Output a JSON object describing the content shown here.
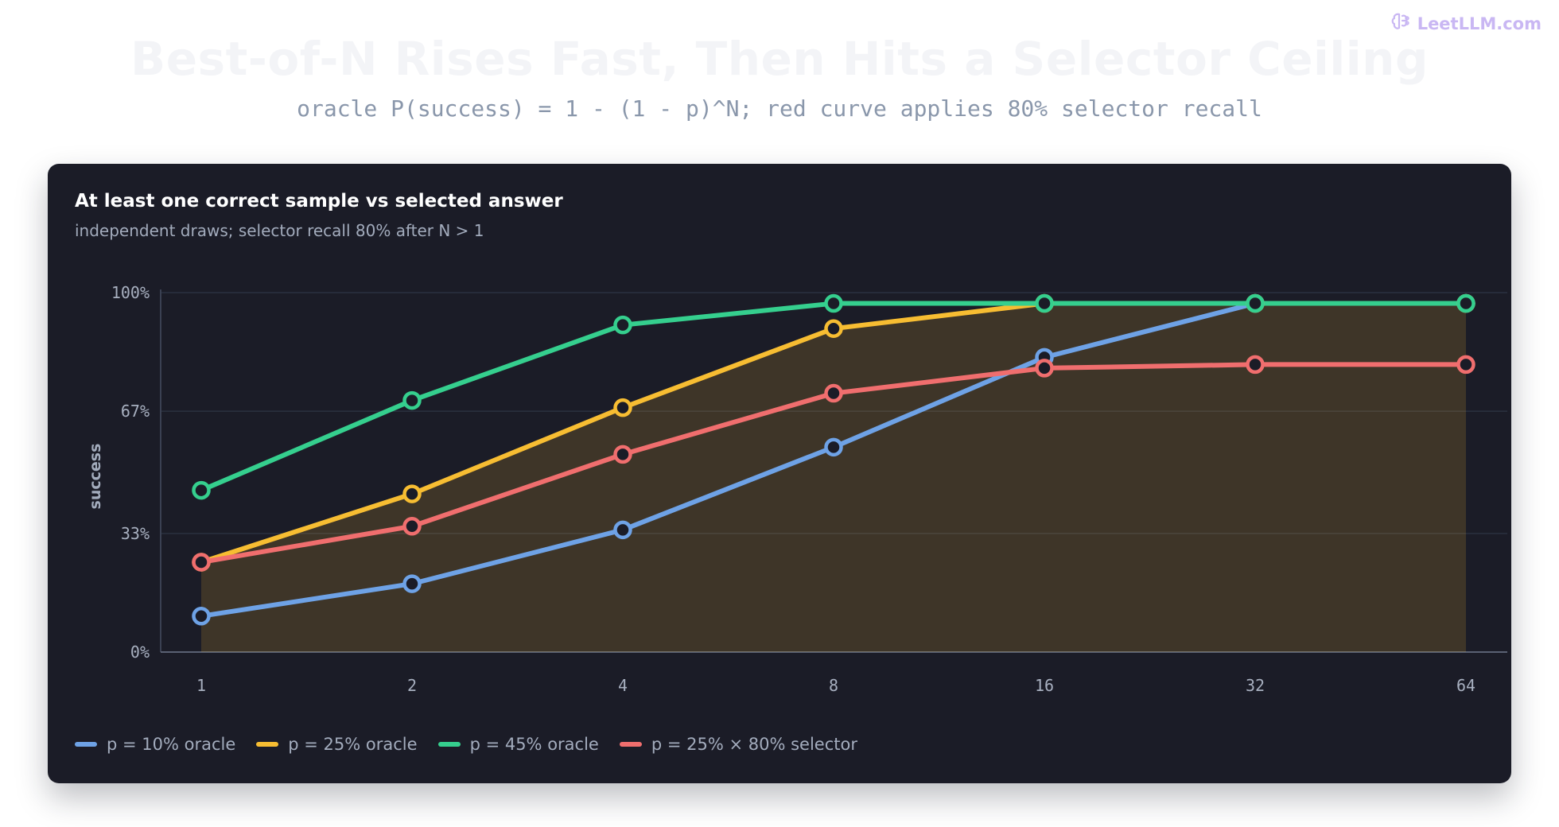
{
  "brand": {
    "name": "LeetLLM.com",
    "icon": "brain-icon",
    "color": "#c9b7f3"
  },
  "header": {
    "title": "Best-of-N Rises Fast, Then Hits a Selector Ceiling",
    "subtitle": "oracle P(success) = 1 - (1 - p)^N; red curve applies 80% selector recall"
  },
  "chart_data": {
    "type": "line",
    "title": "At least one correct sample vs selected answer",
    "subtitle": "independent draws; selector recall 80% after N > 1",
    "xlabel": "",
    "ylabel": "success",
    "x": [
      1,
      2,
      4,
      8,
      16,
      32,
      64
    ],
    "x_tick_labels": [
      "1",
      "2",
      "4",
      "8",
      "16",
      "32",
      "64"
    ],
    "x_scale": "log2",
    "ylim": [
      0,
      1
    ],
    "y_ticks": [
      0,
      0.33,
      0.67,
      1.0
    ],
    "y_tick_labels": [
      "0%",
      "33%",
      "67%",
      "100%"
    ],
    "grid": true,
    "legend_position": "bottom-left",
    "series": [
      {
        "name": "p = 10% oracle",
        "color": "#6ea2e6",
        "values": [
          0.1,
          0.19,
          0.34,
          0.57,
          0.82,
          0.97,
          0.97
        ]
      },
      {
        "name": "p = 25% oracle",
        "color": "#f7bd32",
        "values": [
          0.25,
          0.44,
          0.68,
          0.9,
          0.97,
          0.97,
          0.97
        ],
        "fill": true,
        "fill_color": "rgba(247, 189, 50, 0.16)"
      },
      {
        "name": "p = 45% oracle",
        "color": "#35cf8e",
        "values": [
          0.45,
          0.7,
          0.91,
          0.97,
          0.97,
          0.97,
          0.97
        ]
      },
      {
        "name": "p = 25% × 80% selector",
        "color": "#f06e6e",
        "values": [
          0.25,
          0.35,
          0.55,
          0.72,
          0.79,
          0.8,
          0.8
        ]
      }
    ]
  }
}
